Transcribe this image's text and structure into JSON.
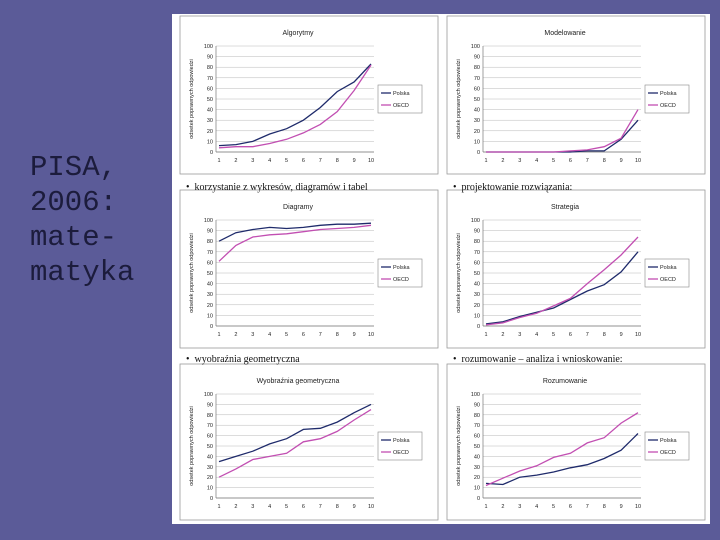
{
  "slide": {
    "title": "PISA,\n2006:\nmate-\nmatyka"
  },
  "colors": {
    "polska": "#1f2b6b",
    "oecd": "#c24fb2"
  },
  "bullets": [
    "korzystanie z wykresów, diagramów i tabel",
    "projektowanie rozwiązania:",
    "wyobraźnia geometryczna",
    "rozumowanie – analiza i wnioskowanie:"
  ],
  "chart_data": [
    {
      "type": "line",
      "title": "Algorytmy",
      "ylabel": "odsetek poprawnych odpowiedzi",
      "x": [
        1,
        2,
        3,
        4,
        5,
        6,
        7,
        8,
        9,
        10
      ],
      "ylim": [
        0,
        100
      ],
      "yticks": [
        0,
        10,
        20,
        30,
        40,
        50,
        60,
        70,
        80,
        90,
        100
      ],
      "legend": "right",
      "series": [
        {
          "name": "Polska",
          "values": [
            6,
            7,
            10,
            17,
            22,
            30,
            42,
            57,
            66,
            83
          ]
        },
        {
          "name": "OECD",
          "values": [
            4,
            5,
            5,
            8,
            12,
            18,
            26,
            38,
            58,
            82
          ]
        }
      ]
    },
    {
      "type": "line",
      "title": "Modelowanie",
      "ylabel": "odsetek poprawnych odpowiedzi",
      "x": [
        1,
        2,
        3,
        4,
        5,
        6,
        7,
        8,
        9,
        10
      ],
      "ylim": [
        0,
        100
      ],
      "yticks": [
        0,
        10,
        20,
        30,
        40,
        50,
        60,
        70,
        80,
        90,
        100
      ],
      "legend": "right",
      "series": [
        {
          "name": "Polska",
          "values": [
            0,
            0,
            0,
            0,
            0,
            0,
            1,
            1,
            12,
            30
          ]
        },
        {
          "name": "OECD",
          "values": [
            0,
            0,
            0,
            0,
            0,
            1,
            2,
            5,
            13,
            40
          ]
        }
      ]
    },
    {
      "type": "line",
      "title": "Diagramy",
      "ylabel": "odsetek poprawnych odpowiedzi",
      "x": [
        1,
        2,
        3,
        4,
        5,
        6,
        7,
        8,
        9,
        10
      ],
      "ylim": [
        0,
        100
      ],
      "yticks": [
        0,
        10,
        20,
        30,
        40,
        50,
        60,
        70,
        80,
        90,
        100
      ],
      "legend": "right",
      "series": [
        {
          "name": "Polska",
          "values": [
            80,
            88,
            91,
            93,
            92,
            93,
            95,
            96,
            96,
            97
          ]
        },
        {
          "name": "OECD",
          "values": [
            61,
            76,
            84,
            86,
            87,
            89,
            91,
            92,
            93,
            95
          ]
        }
      ]
    },
    {
      "type": "line",
      "title": "Strategia",
      "ylabel": "odsetek poprawnych odpowiedzi",
      "x": [
        1,
        2,
        3,
        4,
        5,
        6,
        7,
        8,
        9,
        10
      ],
      "ylim": [
        0,
        100
      ],
      "yticks": [
        0,
        10,
        20,
        30,
        40,
        50,
        60,
        70,
        80,
        90,
        100
      ],
      "legend": "right",
      "series": [
        {
          "name": "Polska",
          "values": [
            2,
            4,
            9,
            13,
            17,
            25,
            33,
            39,
            51,
            70
          ]
        },
        {
          "name": "OECD",
          "values": [
            1,
            3,
            8,
            12,
            19,
            26,
            40,
            53,
            67,
            84
          ]
        }
      ]
    },
    {
      "type": "line",
      "title": "Wyobraźnia geometryczna",
      "ylabel": "odsetek poprawnych odpowiedzi",
      "x": [
        1,
        2,
        3,
        4,
        5,
        6,
        7,
        8,
        9,
        10
      ],
      "ylim": [
        0,
        100
      ],
      "yticks": [
        0,
        10,
        20,
        30,
        40,
        50,
        60,
        70,
        80,
        90,
        100
      ],
      "legend": "right",
      "series": [
        {
          "name": "Polska",
          "values": [
            35,
            40,
            45,
            52,
            57,
            66,
            67,
            73,
            82,
            90
          ]
        },
        {
          "name": "OECD",
          "values": [
            20,
            28,
            37,
            40,
            43,
            54,
            57,
            64,
            75,
            85
          ]
        }
      ]
    },
    {
      "type": "line",
      "title": "Rozumowanie",
      "ylabel": "odsetek poprawnych odpowiedzi",
      "x": [
        1,
        2,
        3,
        4,
        5,
        6,
        7,
        8,
        9,
        10
      ],
      "ylim": [
        0,
        100
      ],
      "yticks": [
        0,
        10,
        20,
        30,
        40,
        50,
        60,
        70,
        80,
        90,
        100
      ],
      "legend": "right",
      "series": [
        {
          "name": "Polska",
          "values": [
            14,
            13,
            20,
            22,
            25,
            29,
            32,
            38,
            46,
            62
          ]
        },
        {
          "name": "OECD",
          "values": [
            12,
            19,
            26,
            31,
            39,
            43,
            53,
            58,
            72,
            82
          ]
        }
      ]
    }
  ]
}
